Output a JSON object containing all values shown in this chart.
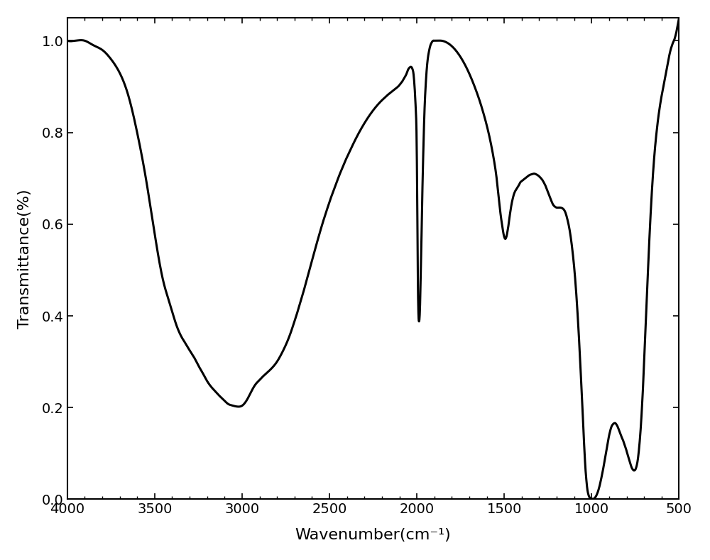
{
  "xlabel": "Wavenumber(cm⁻¹)",
  "ylabel": "Transmittance(%)",
  "xlim": [
    4000,
    500
  ],
  "ylim": [
    0.0,
    1.05
  ],
  "xticks": [
    4000,
    3500,
    3000,
    2500,
    2000,
    1500,
    1000,
    500
  ],
  "yticks": [
    0.0,
    0.2,
    0.4,
    0.6,
    0.8,
    1.0
  ],
  "line_color": "#000000",
  "line_width": 2.2,
  "background_color": "#ffffff",
  "keypoints": [
    [
      4000,
      1.0
    ],
    [
      3950,
      1.0
    ],
    [
      3900,
      1.0
    ],
    [
      3850,
      0.99
    ],
    [
      3800,
      0.98
    ],
    [
      3750,
      0.96
    ],
    [
      3700,
      0.93
    ],
    [
      3650,
      0.88
    ],
    [
      3600,
      0.8
    ],
    [
      3550,
      0.7
    ],
    [
      3500,
      0.58
    ],
    [
      3450,
      0.475
    ],
    [
      3420,
      0.435
    ],
    [
      3400,
      0.41
    ],
    [
      3380,
      0.385
    ],
    [
      3360,
      0.365
    ],
    [
      3340,
      0.35
    ],
    [
      3320,
      0.338
    ],
    [
      3300,
      0.325
    ],
    [
      3280,
      0.313
    ],
    [
      3260,
      0.3
    ],
    [
      3240,
      0.285
    ],
    [
      3220,
      0.272
    ],
    [
      3200,
      0.258
    ],
    [
      3180,
      0.247
    ],
    [
      3160,
      0.238
    ],
    [
      3140,
      0.23
    ],
    [
      3120,
      0.222
    ],
    [
      3100,
      0.215
    ],
    [
      3080,
      0.208
    ],
    [
      3060,
      0.205
    ],
    [
      3040,
      0.203
    ],
    [
      3020,
      0.202
    ],
    [
      3000,
      0.204
    ],
    [
      2980,
      0.212
    ],
    [
      2960,
      0.225
    ],
    [
      2940,
      0.24
    ],
    [
      2920,
      0.252
    ],
    [
      2900,
      0.26
    ],
    [
      2880,
      0.268
    ],
    [
      2860,
      0.275
    ],
    [
      2840,
      0.282
    ],
    [
      2820,
      0.29
    ],
    [
      2800,
      0.3
    ],
    [
      2780,
      0.313
    ],
    [
      2760,
      0.328
    ],
    [
      2740,
      0.345
    ],
    [
      2720,
      0.365
    ],
    [
      2700,
      0.388
    ],
    [
      2680,
      0.412
    ],
    [
      2660,
      0.438
    ],
    [
      2640,
      0.464
    ],
    [
      2620,
      0.492
    ],
    [
      2600,
      0.52
    ],
    [
      2580,
      0.548
    ],
    [
      2560,
      0.575
    ],
    [
      2540,
      0.601
    ],
    [
      2520,
      0.625
    ],
    [
      2500,
      0.648
    ],
    [
      2480,
      0.67
    ],
    [
      2460,
      0.69
    ],
    [
      2440,
      0.71
    ],
    [
      2420,
      0.728
    ],
    [
      2400,
      0.746
    ],
    [
      2380,
      0.762
    ],
    [
      2360,
      0.778
    ],
    [
      2340,
      0.793
    ],
    [
      2320,
      0.807
    ],
    [
      2300,
      0.82
    ],
    [
      2280,
      0.832
    ],
    [
      2260,
      0.843
    ],
    [
      2240,
      0.853
    ],
    [
      2220,
      0.862
    ],
    [
      2200,
      0.87
    ],
    [
      2180,
      0.877
    ],
    [
      2160,
      0.884
    ],
    [
      2140,
      0.89
    ],
    [
      2120,
      0.896
    ],
    [
      2100,
      0.903
    ],
    [
      2090,
      0.908
    ],
    [
      2080,
      0.913
    ],
    [
      2070,
      0.92
    ],
    [
      2060,
      0.927
    ],
    [
      2055,
      0.932
    ],
    [
      2050,
      0.937
    ],
    [
      2045,
      0.94
    ],
    [
      2040,
      0.942
    ],
    [
      2035,
      0.943
    ],
    [
      2030,
      0.942
    ],
    [
      2025,
      0.938
    ],
    [
      2020,
      0.93
    ],
    [
      2015,
      0.91
    ],
    [
      2010,
      0.88
    ],
    [
      2005,
      0.84
    ],
    [
      2002,
      0.8
    ],
    [
      2000,
      0.74
    ],
    [
      1998,
      0.66
    ],
    [
      1996,
      0.56
    ],
    [
      1994,
      0.47
    ],
    [
      1992,
      0.42
    ],
    [
      1990,
      0.395
    ],
    [
      1988,
      0.388
    ],
    [
      1986,
      0.39
    ],
    [
      1984,
      0.4
    ],
    [
      1982,
      0.42
    ],
    [
      1980,
      0.45
    ],
    [
      1978,
      0.49
    ],
    [
      1975,
      0.54
    ],
    [
      1972,
      0.6
    ],
    [
      1968,
      0.68
    ],
    [
      1963,
      0.76
    ],
    [
      1957,
      0.84
    ],
    [
      1950,
      0.9
    ],
    [
      1943,
      0.94
    ],
    [
      1936,
      0.965
    ],
    [
      1930,
      0.978
    ],
    [
      1924,
      0.988
    ],
    [
      1918,
      0.994
    ],
    [
      1912,
      0.998
    ],
    [
      1906,
      1.0
    ],
    [
      1900,
      1.0
    ],
    [
      1880,
      1.0
    ],
    [
      1860,
      1.0
    ],
    [
      1840,
      0.998
    ],
    [
      1820,
      0.994
    ],
    [
      1800,
      0.988
    ],
    [
      1780,
      0.98
    ],
    [
      1760,
      0.97
    ],
    [
      1740,
      0.958
    ],
    [
      1720,
      0.944
    ],
    [
      1700,
      0.928
    ],
    [
      1680,
      0.91
    ],
    [
      1660,
      0.89
    ],
    [
      1640,
      0.868
    ],
    [
      1620,
      0.843
    ],
    [
      1600,
      0.815
    ],
    [
      1580,
      0.782
    ],
    [
      1560,
      0.742
    ],
    [
      1550,
      0.718
    ],
    [
      1540,
      0.688
    ],
    [
      1530,
      0.652
    ],
    [
      1520,
      0.618
    ],
    [
      1510,
      0.592
    ],
    [
      1505,
      0.58
    ],
    [
      1500,
      0.572
    ],
    [
      1495,
      0.568
    ],
    [
      1490,
      0.57
    ],
    [
      1485,
      0.577
    ],
    [
      1480,
      0.588
    ],
    [
      1475,
      0.6
    ],
    [
      1470,
      0.615
    ],
    [
      1465,
      0.628
    ],
    [
      1460,
      0.64
    ],
    [
      1455,
      0.65
    ],
    [
      1450,
      0.658
    ],
    [
      1445,
      0.665
    ],
    [
      1440,
      0.67
    ],
    [
      1435,
      0.674
    ],
    [
      1430,
      0.677
    ],
    [
      1425,
      0.68
    ],
    [
      1420,
      0.683
    ],
    [
      1415,
      0.686
    ],
    [
      1410,
      0.69
    ],
    [
      1400,
      0.694
    ],
    [
      1390,
      0.697
    ],
    [
      1380,
      0.7
    ],
    [
      1370,
      0.703
    ],
    [
      1360,
      0.706
    ],
    [
      1350,
      0.708
    ],
    [
      1340,
      0.709
    ],
    [
      1330,
      0.71
    ],
    [
      1320,
      0.709
    ],
    [
      1310,
      0.707
    ],
    [
      1300,
      0.704
    ],
    [
      1290,
      0.7
    ],
    [
      1280,
      0.695
    ],
    [
      1270,
      0.688
    ],
    [
      1260,
      0.68
    ],
    [
      1250,
      0.67
    ],
    [
      1240,
      0.66
    ],
    [
      1230,
      0.65
    ],
    [
      1220,
      0.642
    ],
    [
      1210,
      0.638
    ],
    [
      1200,
      0.636
    ],
    [
      1190,
      0.636
    ],
    [
      1180,
      0.636
    ],
    [
      1170,
      0.635
    ],
    [
      1160,
      0.632
    ],
    [
      1150,
      0.625
    ],
    [
      1140,
      0.612
    ],
    [
      1130,
      0.595
    ],
    [
      1120,
      0.572
    ],
    [
      1110,
      0.542
    ],
    [
      1100,
      0.505
    ],
    [
      1090,
      0.458
    ],
    [
      1080,
      0.4
    ],
    [
      1070,
      0.332
    ],
    [
      1060,
      0.255
    ],
    [
      1050,
      0.175
    ],
    [
      1045,
      0.133
    ],
    [
      1040,
      0.095
    ],
    [
      1035,
      0.063
    ],
    [
      1030,
      0.04
    ],
    [
      1025,
      0.022
    ],
    [
      1020,
      0.012
    ],
    [
      1015,
      0.006
    ],
    [
      1010,
      0.003
    ],
    [
      1005,
      0.001
    ],
    [
      1000,
      0.001
    ],
    [
      995,
      0.001
    ],
    [
      990,
      0.001
    ],
    [
      985,
      0.002
    ],
    [
      980,
      0.004
    ],
    [
      975,
      0.007
    ],
    [
      970,
      0.011
    ],
    [
      965,
      0.016
    ],
    [
      960,
      0.022
    ],
    [
      955,
      0.029
    ],
    [
      950,
      0.037
    ],
    [
      945,
      0.046
    ],
    [
      940,
      0.055
    ],
    [
      935,
      0.065
    ],
    [
      930,
      0.075
    ],
    [
      925,
      0.086
    ],
    [
      920,
      0.097
    ],
    [
      915,
      0.108
    ],
    [
      910,
      0.119
    ],
    [
      905,
      0.13
    ],
    [
      900,
      0.14
    ],
    [
      895,
      0.148
    ],
    [
      890,
      0.155
    ],
    [
      885,
      0.16
    ],
    [
      880,
      0.163
    ],
    [
      875,
      0.165
    ],
    [
      870,
      0.166
    ],
    [
      865,
      0.166
    ],
    [
      860,
      0.164
    ],
    [
      855,
      0.161
    ],
    [
      850,
      0.157
    ],
    [
      845,
      0.152
    ],
    [
      840,
      0.147
    ],
    [
      835,
      0.142
    ],
    [
      830,
      0.137
    ],
    [
      825,
      0.132
    ],
    [
      820,
      0.128
    ],
    [
      815,
      0.123
    ],
    [
      810,
      0.117
    ],
    [
      805,
      0.111
    ],
    [
      800,
      0.105
    ],
    [
      795,
      0.098
    ],
    [
      790,
      0.092
    ],
    [
      785,
      0.085
    ],
    [
      780,
      0.079
    ],
    [
      775,
      0.073
    ],
    [
      770,
      0.068
    ],
    [
      765,
      0.065
    ],
    [
      760,
      0.063
    ],
    [
      755,
      0.063
    ],
    [
      750,
      0.065
    ],
    [
      745,
      0.07
    ],
    [
      740,
      0.078
    ],
    [
      735,
      0.09
    ],
    [
      730,
      0.107
    ],
    [
      725,
      0.128
    ],
    [
      720,
      0.153
    ],
    [
      715,
      0.183
    ],
    [
      710,
      0.218
    ],
    [
      705,
      0.256
    ],
    [
      700,
      0.298
    ],
    [
      695,
      0.342
    ],
    [
      690,
      0.388
    ],
    [
      685,
      0.435
    ],
    [
      680,
      0.481
    ],
    [
      675,
      0.526
    ],
    [
      670,
      0.568
    ],
    [
      665,
      0.607
    ],
    [
      660,
      0.643
    ],
    [
      655,
      0.676
    ],
    [
      650,
      0.706
    ],
    [
      645,
      0.733
    ],
    [
      640,
      0.757
    ],
    [
      635,
      0.778
    ],
    [
      630,
      0.797
    ],
    [
      625,
      0.814
    ],
    [
      620,
      0.83
    ],
    [
      615,
      0.844
    ],
    [
      610,
      0.857
    ],
    [
      605,
      0.869
    ],
    [
      600,
      0.88
    ],
    [
      595,
      0.89
    ],
    [
      590,
      0.9
    ],
    [
      585,
      0.91
    ],
    [
      580,
      0.92
    ],
    [
      575,
      0.93
    ],
    [
      570,
      0.94
    ],
    [
      565,
      0.95
    ],
    [
      560,
      0.96
    ],
    [
      555,
      0.97
    ],
    [
      550,
      0.978
    ],
    [
      545,
      0.985
    ],
    [
      540,
      0.99
    ],
    [
      535,
      0.996
    ],
    [
      530,
      1.0
    ],
    [
      525,
      1.005
    ],
    [
      520,
      1.012
    ],
    [
      515,
      1.02
    ],
    [
      510,
      1.03
    ],
    [
      505,
      1.04
    ],
    [
      500,
      1.05
    ]
  ]
}
